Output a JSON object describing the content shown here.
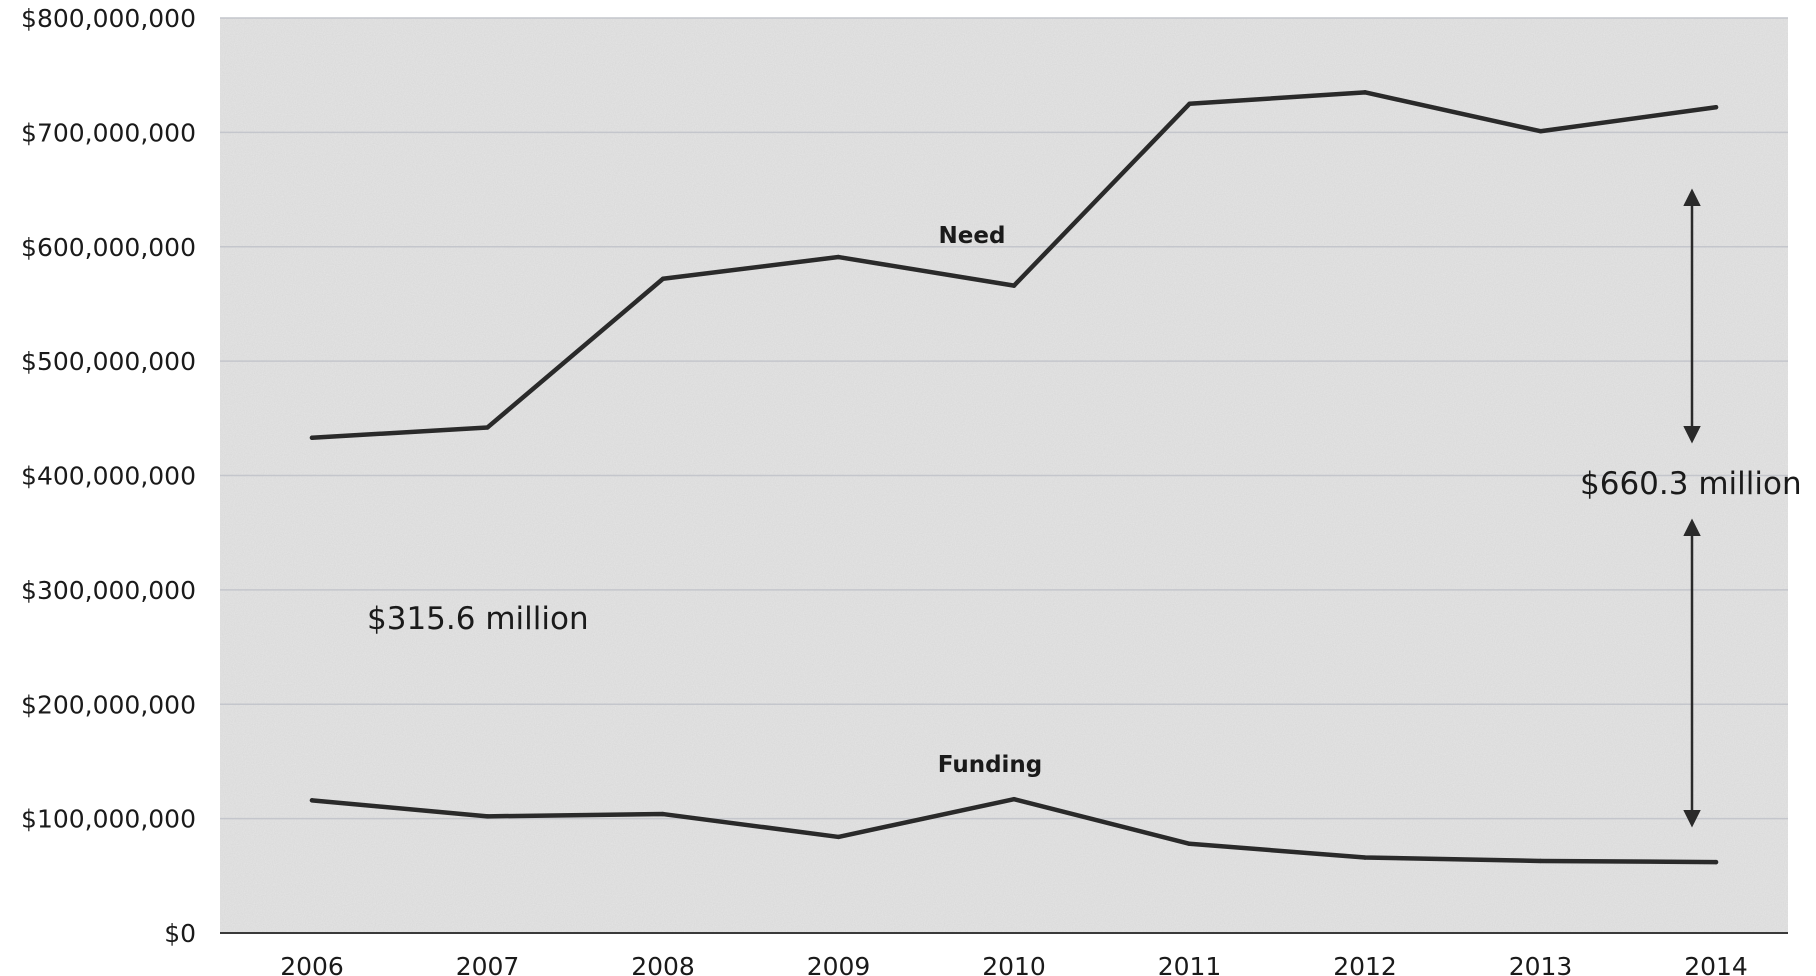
{
  "chart_data": {
    "type": "line",
    "x": [
      2006,
      2007,
      2008,
      2009,
      2010,
      2011,
      2012,
      2013,
      2014
    ],
    "y_tick_labels": [
      "$0",
      "$100,000,000",
      "$200,000,000",
      "$300,000,000",
      "$400,000,000",
      "$500,000,000",
      "$600,000,000",
      "$700,000,000",
      "$800,000,000"
    ],
    "ylim": [
      0,
      800000000
    ],
    "grid": true,
    "series": [
      {
        "name": "Need",
        "values": [
          433000000,
          442000000,
          572000000,
          591000000,
          566000000,
          725000000,
          735000000,
          701000000,
          722000000
        ]
      },
      {
        "name": "Funding",
        "values": [
          116000000,
          102000000,
          104000000,
          84000000,
          117000000,
          78000000,
          66000000,
          63000000,
          62000000
        ]
      }
    ],
    "annotations": [
      {
        "text": "$315.6 million"
      },
      {
        "text": "$660.3 million"
      }
    ],
    "colors": {
      "line": "#2a2a2a",
      "plot_background": "#e3e3e3",
      "grid": "#c4c6cc"
    }
  }
}
